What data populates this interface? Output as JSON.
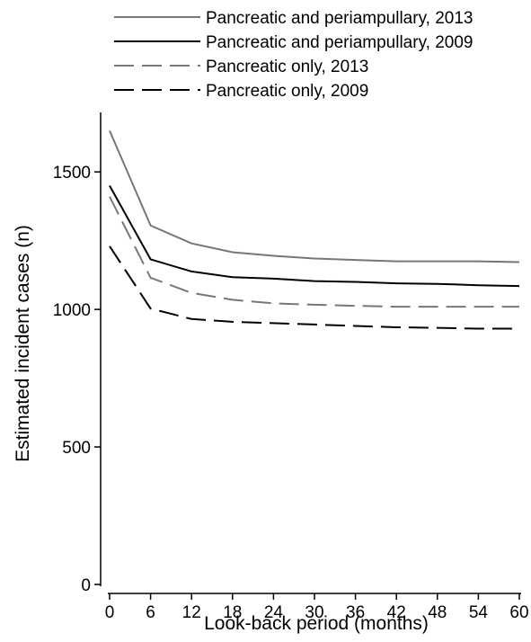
{
  "chart_data": {
    "type": "line",
    "title": "",
    "xlabel": "Look-back period (months)",
    "ylabel": "Estimated incident cases (n)",
    "xlim": [
      0,
      60
    ],
    "ylim": [
      0,
      1700
    ],
    "grid": false,
    "legend_position": "top",
    "x": [
      0,
      6,
      12,
      18,
      24,
      30,
      36,
      42,
      48,
      54,
      60
    ],
    "x_ticks": [
      0,
      6,
      12,
      18,
      24,
      30,
      36,
      42,
      48,
      54,
      60
    ],
    "y_ticks": [
      0,
      500,
      1000,
      1500
    ],
    "series": [
      {
        "name": "Pancreatic and periampullary, 2013",
        "color": "#777777",
        "dash": "solid",
        "values": [
          1650,
          1305,
          1240,
          1208,
          1195,
          1185,
          1180,
          1175,
          1175,
          1175,
          1172
        ]
      },
      {
        "name": "Pancreatic and periampullary, 2009",
        "color": "#000000",
        "dash": "solid",
        "values": [
          1450,
          1182,
          1138,
          1117,
          1112,
          1103,
          1100,
          1095,
          1093,
          1088,
          1085
        ]
      },
      {
        "name": "Pancreatic only, 2013",
        "color": "#777777",
        "dash": "dashed",
        "values": [
          1410,
          1115,
          1060,
          1035,
          1022,
          1017,
          1013,
          1010,
          1010,
          1010,
          1010
        ]
      },
      {
        "name": "Pancreatic only, 2009",
        "color": "#000000",
        "dash": "dashed",
        "values": [
          1230,
          1003,
          965,
          955,
          950,
          945,
          940,
          935,
          933,
          930,
          930
        ]
      }
    ]
  }
}
